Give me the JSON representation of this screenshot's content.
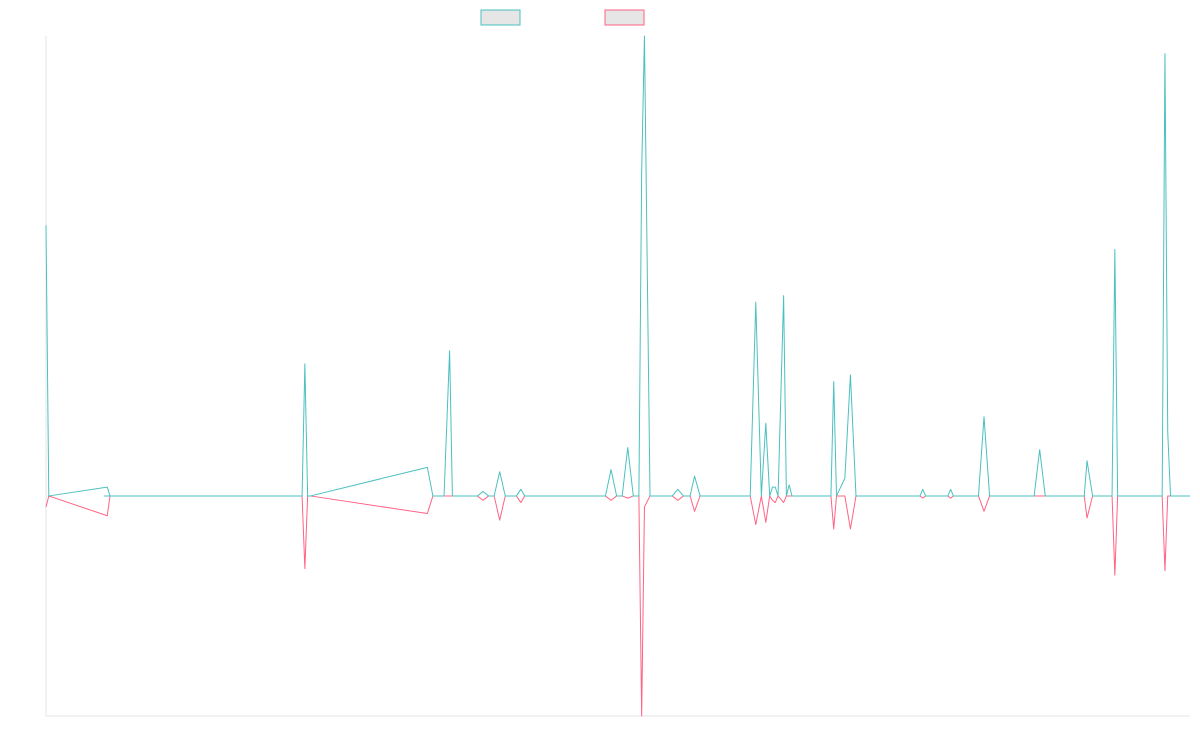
{
  "chart_data": {
    "type": "line",
    "title": "",
    "xlabel": "",
    "ylabel": "",
    "grid": false,
    "legend": "top-center",
    "ylim": [
      -1.0,
      2.09
    ],
    "series": [
      {
        "color": "#4bc0c0",
        "fill": "#e6e6e6",
        "points": [
          [
            0,
            1.23
          ],
          [
            0.0025,
            0
          ],
          [
            0.055,
            0.04
          ],
          [
            0.0575,
            0
          ],
          [
            0.0525,
            0
          ],
          [
            0.23,
            0
          ],
          [
            0.2325,
            0.6
          ],
          [
            0.235,
            0
          ],
          [
            0.2375,
            0
          ],
          [
            0.3425,
            0.13
          ],
          [
            0.3475,
            0
          ],
          [
            0.3575,
            0
          ],
          [
            0.3625,
            0.66
          ],
          [
            0.365,
            0
          ],
          [
            0.3875,
            0
          ],
          [
            0.3925,
            0.02
          ],
          [
            0.3975,
            0
          ],
          [
            0.4025,
            0
          ],
          [
            0.4075,
            0.11
          ],
          [
            0.4125,
            0
          ],
          [
            0.4225,
            0
          ],
          [
            0.4265,
            0.03
          ],
          [
            0.43,
            0
          ],
          [
            0.5025,
            0
          ],
          [
            0.5075,
            0.12
          ],
          [
            0.5125,
            0
          ],
          [
            0.5175,
            0
          ],
          [
            0.5225,
            0.22
          ],
          [
            0.5275,
            0
          ],
          [
            0.5325,
            0
          ],
          [
            0.535,
            1.47
          ],
          [
            0.5375,
            2.09
          ],
          [
            0.5425,
            0
          ],
          [
            0.5625,
            0
          ],
          [
            0.5675,
            0.03
          ],
          [
            0.5725,
            0
          ],
          [
            0.5785,
            0
          ],
          [
            0.5825,
            0.09
          ],
          [
            0.5875,
            0
          ],
          [
            0.6325,
            0
          ],
          [
            0.6375,
            0.88
          ],
          [
            0.6425,
            0
          ],
          [
            0.6465,
            0.33
          ],
          [
            0.65,
            0
          ],
          [
            0.6525,
            0.04
          ],
          [
            0.655,
            0.04
          ],
          [
            0.6575,
            0
          ],
          [
            0.6625,
            0.91
          ],
          [
            0.665,
            0
          ],
          [
            0.6675,
            0.05
          ],
          [
            0.67,
            0
          ],
          [
            0.705,
            0
          ],
          [
            0.7075,
            0.52
          ],
          [
            0.71,
            0
          ],
          [
            0.7175,
            0.08
          ],
          [
            0.7225,
            0.55
          ],
          [
            0.7275,
            0
          ],
          [
            0.785,
            0
          ],
          [
            0.7875,
            0.03
          ],
          [
            0.79,
            0
          ],
          [
            0.81,
            0
          ],
          [
            0.8125,
            0.03
          ],
          [
            0.815,
            0
          ],
          [
            0.8375,
            0
          ],
          [
            0.8425,
            0.36
          ],
          [
            0.8475,
            0
          ],
          [
            0.8875,
            0
          ],
          [
            0.8925,
            0.21
          ],
          [
            0.8975,
            0
          ],
          [
            0.9325,
            0
          ],
          [
            0.935,
            0.16
          ],
          [
            0.94,
            0
          ],
          [
            0.9575,
            0
          ],
          [
            0.96,
            1.12
          ],
          [
            0.9625,
            0
          ],
          [
            1.0025,
            0
          ],
          [
            1.005,
            2.01
          ],
          [
            1.0075,
            0.29
          ],
          [
            1.01,
            0
          ],
          [
            1.0275,
            0
          ]
        ]
      },
      {
        "color": "#ff6384",
        "fill": "#e6e6e6",
        "points": [
          [
            0,
            -0.05
          ],
          [
            0.0025,
            0
          ],
          [
            0.055,
            -0.09
          ],
          [
            0.0575,
            0
          ],
          [
            0.0525,
            0
          ],
          [
            0.23,
            0
          ],
          [
            0.2325,
            -0.33
          ],
          [
            0.235,
            0
          ],
          [
            0.2375,
            0
          ],
          [
            0.3425,
            -0.08
          ],
          [
            0.3475,
            0
          ],
          [
            0.3575,
            0
          ],
          [
            0.3625,
            0
          ],
          [
            0.365,
            0
          ],
          [
            0.3875,
            0
          ],
          [
            0.3925,
            -0.02
          ],
          [
            0.3975,
            0
          ],
          [
            0.4025,
            0
          ],
          [
            0.4075,
            -0.11
          ],
          [
            0.4125,
            0
          ],
          [
            0.4225,
            0
          ],
          [
            0.4265,
            -0.03
          ],
          [
            0.43,
            0
          ],
          [
            0.5025,
            0
          ],
          [
            0.5075,
            -0.02
          ],
          [
            0.5125,
            0
          ],
          [
            0.5175,
            0
          ],
          [
            0.5225,
            -0.01
          ],
          [
            0.5275,
            0
          ],
          [
            0.5325,
            0
          ],
          [
            0.535,
            -1.0
          ],
          [
            0.5375,
            -0.05
          ],
          [
            0.5425,
            0
          ],
          [
            0.5625,
            0
          ],
          [
            0.5675,
            -0.02
          ],
          [
            0.5725,
            0
          ],
          [
            0.5785,
            0
          ],
          [
            0.5825,
            -0.07
          ],
          [
            0.5875,
            0
          ],
          [
            0.6325,
            0
          ],
          [
            0.6375,
            -0.13
          ],
          [
            0.6425,
            0
          ],
          [
            0.6465,
            -0.12
          ],
          [
            0.65,
            0
          ],
          [
            0.6525,
            -0.02
          ],
          [
            0.655,
            -0.03
          ],
          [
            0.6575,
            0
          ],
          [
            0.6625,
            -0.03
          ],
          [
            0.665,
            0
          ],
          [
            0.6675,
            0
          ],
          [
            0.67,
            0
          ],
          [
            0.705,
            0
          ],
          [
            0.7075,
            -0.15
          ],
          [
            0.71,
            0
          ],
          [
            0.7175,
            0
          ],
          [
            0.7225,
            -0.15
          ],
          [
            0.7275,
            0
          ],
          [
            0.785,
            0
          ],
          [
            0.7875,
            -0.01
          ],
          [
            0.79,
            0
          ],
          [
            0.81,
            0
          ],
          [
            0.8125,
            -0.01
          ],
          [
            0.815,
            0
          ],
          [
            0.8375,
            0
          ],
          [
            0.8425,
            -0.07
          ],
          [
            0.8475,
            0
          ],
          [
            0.8875,
            0
          ],
          [
            0.8925,
            0
          ],
          [
            0.8975,
            0
          ],
          [
            0.9325,
            0
          ],
          [
            0.935,
            -0.1
          ],
          [
            0.94,
            0
          ],
          [
            0.9575,
            0
          ],
          [
            0.96,
            -0.36
          ],
          [
            0.9625,
            0
          ],
          [
            1.0025,
            0
          ],
          [
            1.005,
            -0.34
          ],
          [
            1.0075,
            0
          ],
          [
            1.01,
            0
          ],
          [
            1.0275,
            0
          ]
        ]
      }
    ]
  }
}
